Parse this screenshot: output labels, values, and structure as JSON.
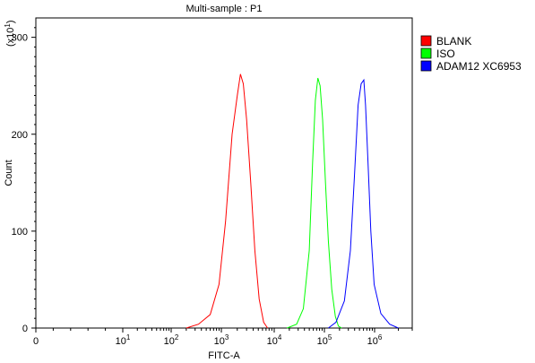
{
  "chart_data": {
    "type": "line",
    "title": "Multi-sample : P1",
    "xlabel": "FITC-A",
    "ylabel": "Count",
    "y_multiplier_label": "(x10",
    "y_multiplier_exp": "1",
    "x_scale": "biexponential",
    "ylim": [
      0,
      320
    ],
    "grid": false,
    "legend_position": "right",
    "x_ticks": [
      {
        "value": 0,
        "base": "0",
        "exp": ""
      },
      {
        "value": 10,
        "base": "10",
        "exp": "1"
      },
      {
        "value": 100,
        "base": "10",
        "exp": "2"
      },
      {
        "value": 1000,
        "base": "10",
        "exp": "3"
      },
      {
        "value": 10000,
        "base": "10",
        "exp": "4"
      },
      {
        "value": 100000,
        "base": "10",
        "exp": "5"
      },
      {
        "value": 1000000,
        "base": "10",
        "exp": "6"
      }
    ],
    "y_ticks": [
      0,
      100,
      200,
      300
    ],
    "series": [
      {
        "name": "BLANK",
        "color": "#ff0000",
        "points": [
          [
            200,
            0
          ],
          [
            350,
            4
          ],
          [
            600,
            14
          ],
          [
            900,
            45
          ],
          [
            1200,
            110
          ],
          [
            1600,
            200
          ],
          [
            2000,
            240
          ],
          [
            2300,
            262
          ],
          [
            2600,
            252
          ],
          [
            3000,
            215
          ],
          [
            3600,
            150
          ],
          [
            4300,
            80
          ],
          [
            5200,
            30
          ],
          [
            6300,
            6
          ],
          [
            7500,
            0
          ]
        ]
      },
      {
        "name": "ISO",
        "color": "#00ff00",
        "points": [
          [
            18000,
            0
          ],
          [
            28000,
            4
          ],
          [
            38000,
            20
          ],
          [
            50000,
            80
          ],
          [
            58000,
            170
          ],
          [
            66000,
            235
          ],
          [
            74000,
            258
          ],
          [
            82000,
            250
          ],
          [
            92000,
            215
          ],
          [
            105000,
            150
          ],
          [
            120000,
            90
          ],
          [
            140000,
            40
          ],
          [
            165000,
            12
          ],
          [
            190000,
            2
          ],
          [
            220000,
            0
          ]
        ]
      },
      {
        "name": "ADAM12 XC6953",
        "color": "#0000ff",
        "points": [
          [
            120000,
            0
          ],
          [
            170000,
            6
          ],
          [
            250000,
            28
          ],
          [
            330000,
            80
          ],
          [
            400000,
            160
          ],
          [
            470000,
            230
          ],
          [
            540000,
            252
          ],
          [
            610000,
            256
          ],
          [
            660000,
            230
          ],
          [
            740000,
            170
          ],
          [
            840000,
            100
          ],
          [
            980000,
            45
          ],
          [
            1200000,
            15
          ],
          [
            1550000,
            4
          ],
          [
            2000000,
            0
          ]
        ]
      }
    ]
  }
}
